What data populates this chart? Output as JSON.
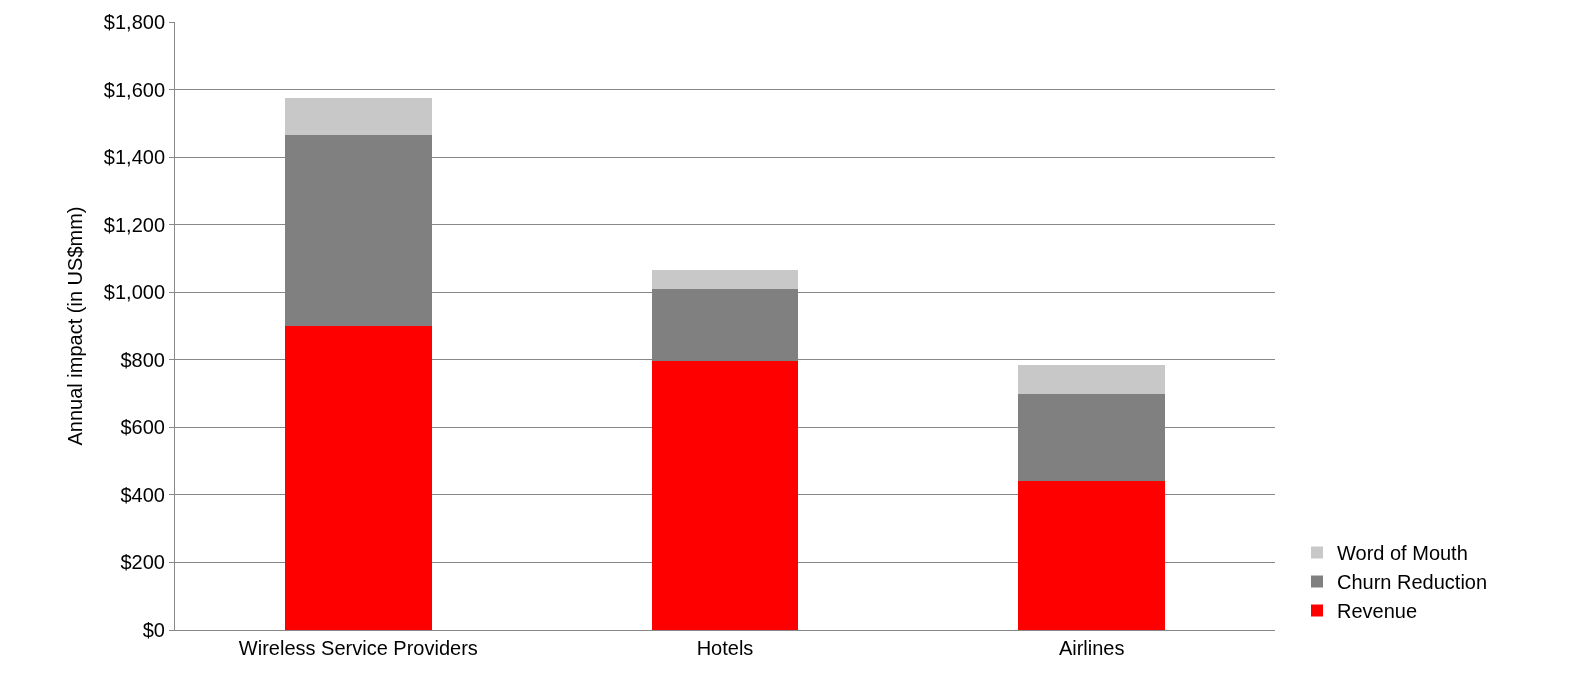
{
  "chart_data": {
    "type": "bar",
    "stacked": true,
    "ylabel": "Annual impact (in US$mm)",
    "categories": [
      "Wireless Service Providers",
      "Hotels",
      "Airlines"
    ],
    "series": [
      {
        "name": "Revenue",
        "color": "#ff0000",
        "values": [
          900,
          795,
          440
        ]
      },
      {
        "name": "Churn Reduction",
        "color": "#808080",
        "values": [
          565,
          215,
          260
        ]
      },
      {
        "name": "Word of Mouth",
        "color": "#c8c8c8",
        "values": [
          110,
          55,
          85
        ]
      }
    ],
    "ylim": [
      0,
      1800
    ],
    "yticks": [
      {
        "value": 0,
        "label": "$0"
      },
      {
        "value": 200,
        "label": "$200"
      },
      {
        "value": 400,
        "label": "$400"
      },
      {
        "value": 600,
        "label": "$600"
      },
      {
        "value": 800,
        "label": "$800"
      },
      {
        "value": 1000,
        "label": "$1,000"
      },
      {
        "value": 1200,
        "label": "$1,200"
      },
      {
        "value": 1400,
        "label": "$1,400"
      },
      {
        "value": 1600,
        "label": "$1,600"
      },
      {
        "value": 1800,
        "label": "$1,800"
      }
    ],
    "grid": "y",
    "legend": "right"
  }
}
